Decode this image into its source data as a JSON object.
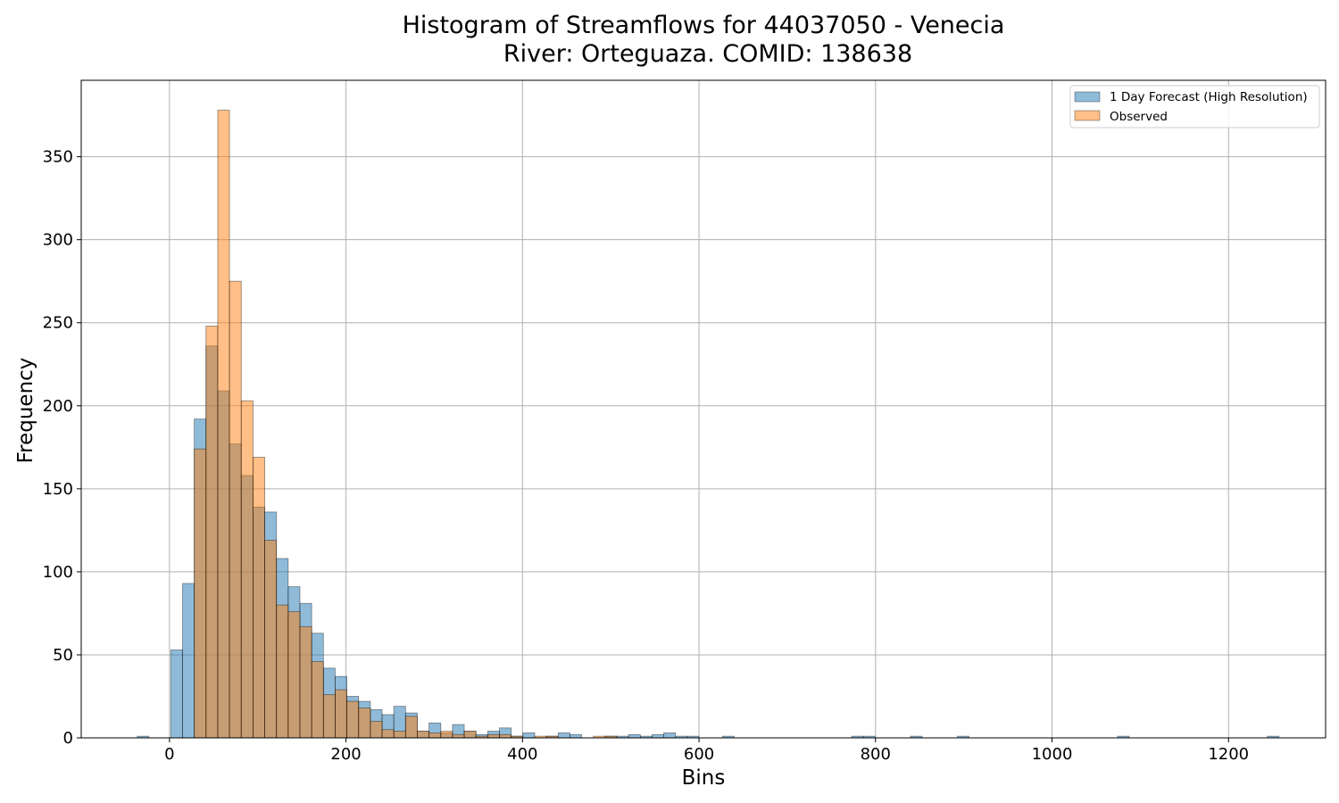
{
  "chart_data": {
    "type": "bar",
    "title": [
      "Histogram of Streamflows for 44037050 - Venecia",
      "River: Orteguaza. COMID: 138638"
    ],
    "xlabel": "Bins",
    "ylabel": "Frequency",
    "xlim": [
      -100,
      1310
    ],
    "ylim": [
      0,
      396
    ],
    "xticks": [
      0,
      200,
      400,
      600,
      800,
      1000,
      1200
    ],
    "yticks": [
      0,
      50,
      100,
      150,
      200,
      250,
      300,
      350
    ],
    "grid": true,
    "legend_position": "top-right",
    "bin_width": 13.3,
    "series": [
      {
        "name": "1 Day Forecast (High Resolution)",
        "color": "#1f77b4",
        "opacity": 0.5,
        "bins": [
          [
            -36.6,
            1
          ],
          [
            1.5,
            53
          ],
          [
            14.8,
            93
          ],
          [
            28.1,
            192
          ],
          [
            41.4,
            236
          ],
          [
            54.7,
            209
          ],
          [
            68.0,
            177
          ],
          [
            81.3,
            158
          ],
          [
            94.6,
            139
          ],
          [
            107.9,
            136
          ],
          [
            121.2,
            108
          ],
          [
            134.5,
            91
          ],
          [
            147.8,
            81
          ],
          [
            161.1,
            63
          ],
          [
            174.4,
            42
          ],
          [
            187.7,
            37
          ],
          [
            201.0,
            25
          ],
          [
            214.3,
            22
          ],
          [
            227.6,
            17
          ],
          [
            240.9,
            14
          ],
          [
            254.2,
            19
          ],
          [
            267.5,
            15
          ],
          [
            280.8,
            4
          ],
          [
            294.1,
            9
          ],
          [
            307.4,
            3
          ],
          [
            320.7,
            8
          ],
          [
            334.0,
            4
          ],
          [
            347.3,
            2
          ],
          [
            360.6,
            4
          ],
          [
            373.9,
            6
          ],
          [
            387.2,
            1
          ],
          [
            400.5,
            3
          ],
          [
            427.1,
            1
          ],
          [
            440.4,
            3
          ],
          [
            453.7,
            2
          ],
          [
            493.6,
            1
          ],
          [
            506.9,
            1
          ],
          [
            520.2,
            2
          ],
          [
            533.5,
            1
          ],
          [
            546.8,
            2
          ],
          [
            560.1,
            3
          ],
          [
            573.4,
            1
          ],
          [
            586.7,
            1
          ],
          [
            626.6,
            1
          ],
          [
            773.0,
            1
          ],
          [
            786.3,
            1
          ],
          [
            839.5,
            1
          ],
          [
            892.7,
            1
          ],
          [
            1074.2,
            1
          ],
          [
            1243.9,
            1
          ]
        ]
      },
      {
        "name": "Observed",
        "color": "#ff7f0e",
        "opacity": 0.5,
        "bins": [
          [
            28.1,
            174
          ],
          [
            41.4,
            248
          ],
          [
            54.7,
            378
          ],
          [
            68.0,
            275
          ],
          [
            81.3,
            203
          ],
          [
            94.6,
            169
          ],
          [
            107.9,
            119
          ],
          [
            121.2,
            80
          ],
          [
            134.5,
            76
          ],
          [
            147.8,
            67
          ],
          [
            161.1,
            46
          ],
          [
            174.4,
            26
          ],
          [
            187.7,
            29
          ],
          [
            201.0,
            22
          ],
          [
            214.3,
            18
          ],
          [
            227.6,
            10
          ],
          [
            240.9,
            5
          ],
          [
            254.2,
            4
          ],
          [
            267.5,
            13
          ],
          [
            280.8,
            4
          ],
          [
            294.1,
            3
          ],
          [
            307.4,
            4
          ],
          [
            320.7,
            2
          ],
          [
            334.0,
            4
          ],
          [
            347.3,
            1
          ],
          [
            360.6,
            2
          ],
          [
            373.9,
            2
          ],
          [
            387.2,
            1
          ],
          [
            413.8,
            1
          ],
          [
            427.1,
            1
          ],
          [
            480.3,
            1
          ],
          [
            493.6,
            1
          ]
        ]
      }
    ]
  }
}
